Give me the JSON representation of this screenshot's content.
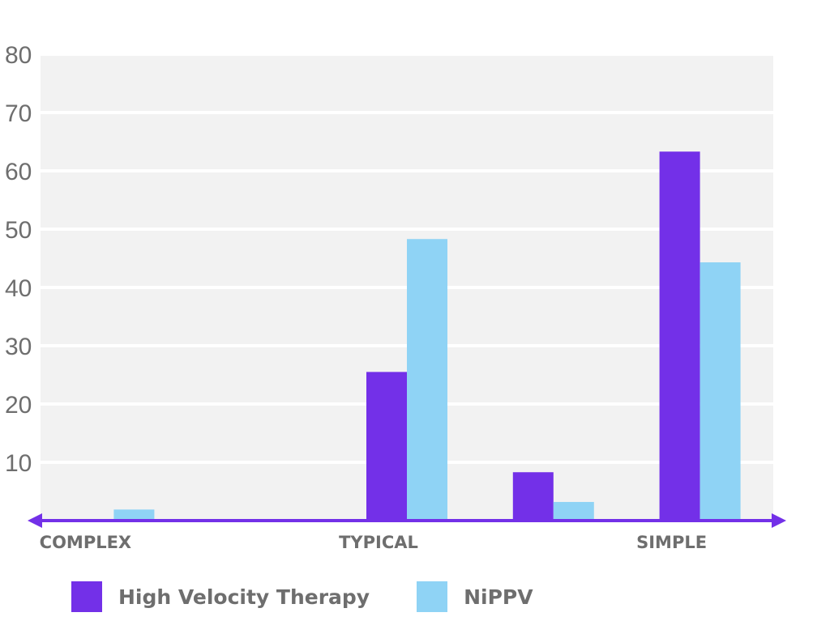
{
  "chart_data": {
    "type": "bar",
    "categories": [
      "COMPLEX",
      "",
      "TYPICAL",
      "",
      "SIMPLE"
    ],
    "series": [
      {
        "name": "High Velocity Therapy",
        "color": "#7330e8",
        "values": [
          0,
          0,
          25.5,
          8.3,
          63.3
        ]
      },
      {
        "name": "NiPPV",
        "color": "#8fd3f5",
        "values": [
          1.9,
          0,
          48.3,
          3.2,
          44.3
        ]
      }
    ],
    "yticks": [
      10,
      20,
      30,
      40,
      50,
      60,
      70,
      80
    ],
    "ylim": [
      0,
      80
    ],
    "title": "",
    "xlabel": "",
    "ylabel": "",
    "grid": true,
    "legend_position": "bottom-left",
    "colors": {
      "plot_background": "#f2f2f2",
      "gridline": "#ffffff",
      "axis": "#7330e8",
      "text": "#6e6e6e"
    }
  }
}
